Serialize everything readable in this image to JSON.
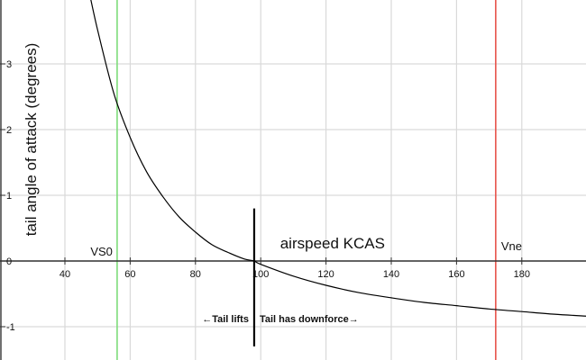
{
  "chart_data": {
    "type": "line",
    "xlabel": "airspeed KCAS",
    "ylabel": "tail angle of attack (degrees)",
    "xlim": [
      22,
      200
    ],
    "ylim": [
      -1.5,
      4
    ],
    "grid": true,
    "x_ticks": [
      40,
      60,
      80,
      100,
      120,
      140,
      160,
      180
    ],
    "y_ticks": [
      -1,
      0,
      1,
      2,
      3
    ],
    "series": [
      {
        "x": [
          47,
          50,
          55,
          60,
          65,
          70,
          75,
          80,
          85,
          90,
          95,
          98,
          100,
          110,
          120,
          130,
          140,
          150,
          160,
          170,
          180,
          190,
          200
        ],
        "y": [
          4.2,
          3.52,
          2.55,
          1.88,
          1.36,
          0.98,
          0.67,
          0.44,
          0.25,
          0.13,
          0.03,
          0.0,
          -0.05,
          -0.23,
          -0.37,
          -0.48,
          -0.56,
          -0.63,
          -0.68,
          -0.73,
          -0.77,
          -0.81,
          -0.84
        ]
      }
    ],
    "reference_lines": [
      {
        "x": 56,
        "label": "VS0",
        "color": "#7ddc7a"
      },
      {
        "x": 172,
        "label": "Vne",
        "color": "#e8544c"
      }
    ],
    "divider": {
      "x": 98,
      "y_range": [
        -1.3,
        0.8
      ],
      "color": "#000000"
    },
    "annotations": {
      "left": "←Tail lifts",
      "right": "Tail has downforce→"
    },
    "colors": {
      "curve": "#000000",
      "grid": "#d9d9d9",
      "axis": "#333333"
    }
  }
}
